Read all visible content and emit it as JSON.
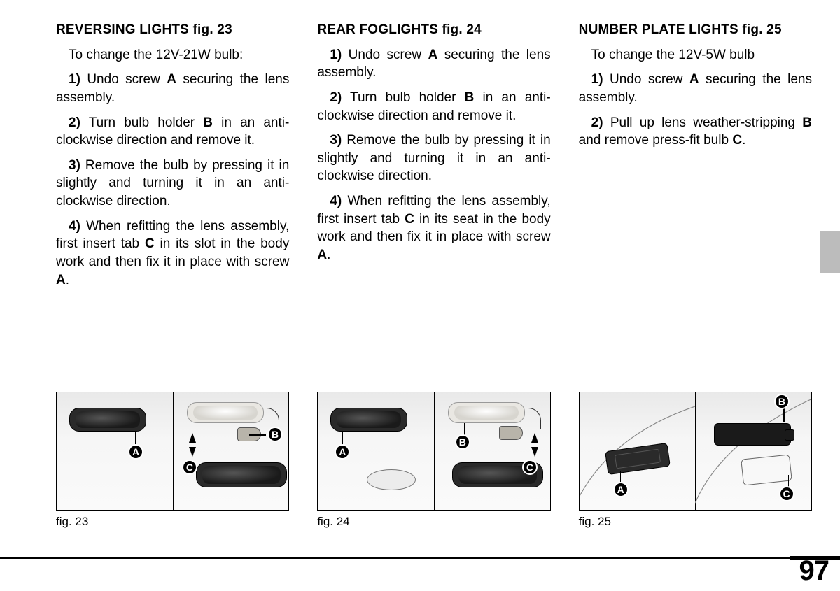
{
  "page_number": "97",
  "side_tab_color": "#bcbcbc",
  "columns": [
    {
      "heading": "REVERSING LIGHTS fig. 23",
      "paragraphs": [
        {
          "text": "To change the 12V-21W bulb:"
        },
        {
          "runs": [
            {
              "t": "1)",
              "b": true
            },
            {
              "t": " Undo screw "
            },
            {
              "t": "A",
              "b": true
            },
            {
              "t": " securing the lens assembly."
            }
          ]
        },
        {
          "runs": [
            {
              "t": "2)",
              "b": true
            },
            {
              "t": " Turn bulb holder "
            },
            {
              "t": "B",
              "b": true
            },
            {
              "t": " in an anti-clockwise direction and remove it."
            }
          ]
        },
        {
          "runs": [
            {
              "t": "3)",
              "b": true
            },
            {
              "t": " Remove the bulb by pressing it in slightly and turning it in an anti-clockwise direction."
            }
          ]
        },
        {
          "runs": [
            {
              "t": "4)",
              "b": true
            },
            {
              "t": " When refitting the lens assembly, first insert tab "
            },
            {
              "t": "C",
              "b": true
            },
            {
              "t": " in its slot in the body work and then fix it in place with screw "
            },
            {
              "t": "A",
              "b": true
            },
            {
              "t": "."
            }
          ]
        }
      ],
      "figure": {
        "caption": "fig. 23",
        "code": "P5S00701m",
        "callouts": [
          "A",
          "B",
          "C"
        ]
      }
    },
    {
      "heading": "REAR FOGLIGHTS fig. 24",
      "paragraphs": [
        {
          "runs": [
            {
              "t": "1)",
              "b": true
            },
            {
              "t": " Undo screw "
            },
            {
              "t": "A",
              "b": true
            },
            {
              "t": " securing the lens assembly."
            }
          ]
        },
        {
          "runs": [
            {
              "t": "2)",
              "b": true
            },
            {
              "t": " Turn bulb holder "
            },
            {
              "t": "B",
              "b": true
            },
            {
              "t": " in an anti-clockwise direction and remove it."
            }
          ]
        },
        {
          "runs": [
            {
              "t": "3)",
              "b": true
            },
            {
              "t": " Remove the bulb by pressing it in slightly and turning it in an anti-clockwise direction."
            }
          ]
        },
        {
          "runs": [
            {
              "t": "4)",
              "b": true
            },
            {
              "t": " When refitting the lens assembly, first insert tab "
            },
            {
              "t": "C",
              "b": true
            },
            {
              "t": " in its seat in the body work and then fix it in place with screw "
            },
            {
              "t": "A",
              "b": true
            },
            {
              "t": "."
            }
          ]
        }
      ],
      "figure": {
        "caption": "fig. 24",
        "code": "P5S00702m",
        "callouts": [
          "A",
          "B",
          "C"
        ]
      }
    },
    {
      "heading": "NUMBER PLATE LIGHTS fig. 25",
      "paragraphs": [
        {
          "text": "To change the 12V-5W bulb"
        },
        {
          "runs": [
            {
              "t": "1)",
              "b": true
            },
            {
              "t": " Undo screw "
            },
            {
              "t": "A",
              "b": true
            },
            {
              "t": " securing the lens assembly."
            }
          ]
        },
        {
          "runs": [
            {
              "t": "2)",
              "b": true
            },
            {
              "t": " Pull up lens weather-stripping "
            },
            {
              "t": "B",
              "b": true
            },
            {
              "t": " and remove press-fit bulb "
            },
            {
              "t": "C",
              "b": true
            },
            {
              "t": "."
            }
          ]
        }
      ],
      "figure": {
        "caption": "fig. 25",
        "code": "P5S00703m",
        "callouts": [
          "A",
          "B",
          "C"
        ]
      }
    }
  ]
}
